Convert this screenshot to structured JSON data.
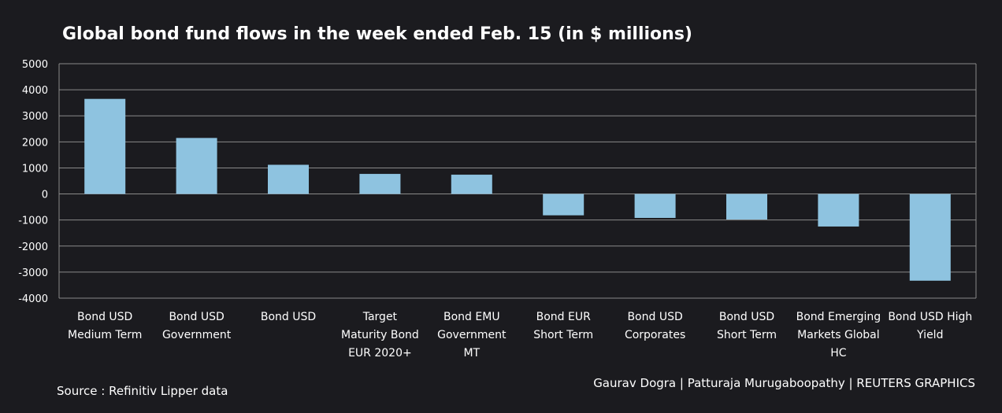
{
  "title": "Global bond fund flows in the week ended Feb. 15 (in $ millions)",
  "source": "Source : Refinitiv Lipper data",
  "credit": "Gaurav Dogra | Patturaja Murugaboopathy | REUTERS GRAPHICS",
  "colors": {
    "background": "#1b1b1f",
    "bar": "#8ec3e0",
    "grid": "#8a8a8a",
    "text": "#ffffff"
  },
  "chart_data": {
    "type": "bar",
    "title": "Global bond fund flows in the week ended Feb. 15 (in $ millions)",
    "xlabel": "",
    "ylabel": "",
    "ylim": [
      -4000,
      5000
    ],
    "yticks": [
      "5000",
      "4000",
      "3000",
      "2000",
      "1000",
      "0",
      "-1000",
      "-2000",
      "-3000",
      "-4000"
    ],
    "grid": true,
    "categories": [
      [
        "Bond USD",
        "Medium Term"
      ],
      [
        "Bond USD",
        "Government"
      ],
      [
        "Bond USD"
      ],
      [
        "Target",
        "Maturity Bond",
        "EUR 2020+"
      ],
      [
        "Bond EMU",
        "Government",
        "MT"
      ],
      [
        "Bond EUR",
        "Short Term"
      ],
      [
        "Bond USD",
        "Corporates"
      ],
      [
        "Bond USD",
        "Short Term"
      ],
      [
        "Bond Emerging",
        "Markets Global",
        "HC"
      ],
      [
        "Bond USD High",
        "Yield"
      ]
    ],
    "values": [
      3650,
      2150,
      1120,
      770,
      740,
      -820,
      -920,
      -980,
      -1250,
      -3330
    ]
  }
}
